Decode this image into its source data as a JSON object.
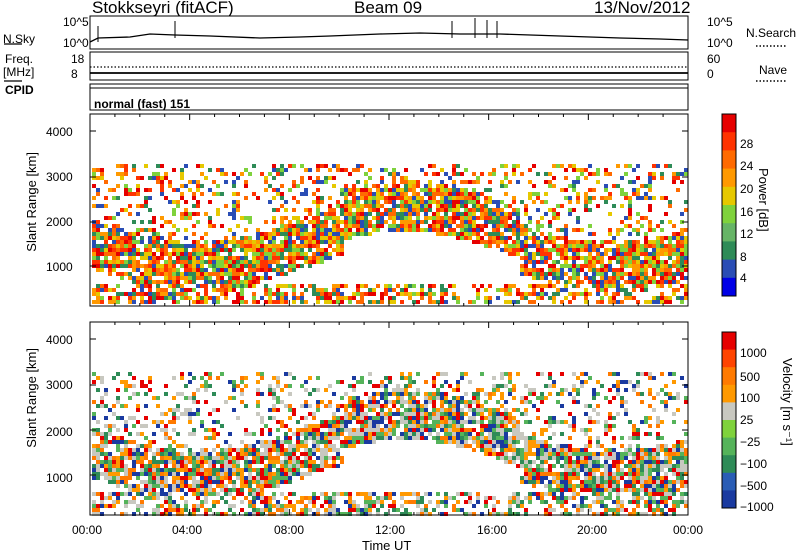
{
  "header": {
    "station": "Stokkseyri (fitACF)",
    "beam": "Beam 09",
    "date": "13/Nov/2012"
  },
  "strip_labels": {
    "nsky": "N.Sky",
    "nsky_hi": "10^5",
    "nsky_lo": "10^0",
    "nsearch": "N.Search",
    "nsearch_hi": "10^5",
    "nsearch_lo": "10^0",
    "freq": "Freq.",
    "freq_unit": "[MHz]",
    "freq_hi": "18",
    "freq_lo": "8",
    "nave": "Nave",
    "nave_hi": "60",
    "nave_lo": "0",
    "cpid": "CPID",
    "mode": "normal (fast)  151"
  },
  "chart_data": [
    {
      "type": "heatmap",
      "name": "power",
      "ylabel": "Slant Range [km]",
      "ylim": [
        200,
        4500
      ],
      "yticks": [
        "1000",
        "2000",
        "3000",
        "4000"
      ],
      "colorbar_label": "Power [dB]",
      "colorbar_ticks": [
        "4",
        "8",
        "12",
        "16",
        "20",
        "24",
        "28"
      ],
      "colorbar_colors": [
        "#0000e6",
        "#2a4db5",
        "#2e8b57",
        "#66b466",
        "#7fd23c",
        "#e6c800",
        "#ff9900",
        "#ff6a00",
        "#ff3300",
        "#e60000"
      ]
    },
    {
      "type": "heatmap",
      "name": "velocity",
      "ylabel": "Slant Range [km]",
      "xlabel": "Time UT",
      "ylim": [
        200,
        4500
      ],
      "yticks": [
        "1000",
        "2000",
        "3000",
        "4000"
      ],
      "xticks": [
        "00:00",
        "04:00",
        "08:00",
        "12:00",
        "16:00",
        "20:00",
        "00:00"
      ],
      "colorbar_label": "Velocity [m s⁻¹]",
      "colorbar_ticks": [
        "1000",
        "500",
        "100",
        "25",
        "−25",
        "−100",
        "−500",
        "−1000"
      ],
      "colorbar_colors": [
        "#1a3aa0",
        "#2a5db5",
        "#2e8b57",
        "#55b35a",
        "#7fd23c",
        "#c8c8c0",
        "#ff9900",
        "#ff7a00",
        "#ff4400",
        "#e60000"
      ]
    }
  ]
}
